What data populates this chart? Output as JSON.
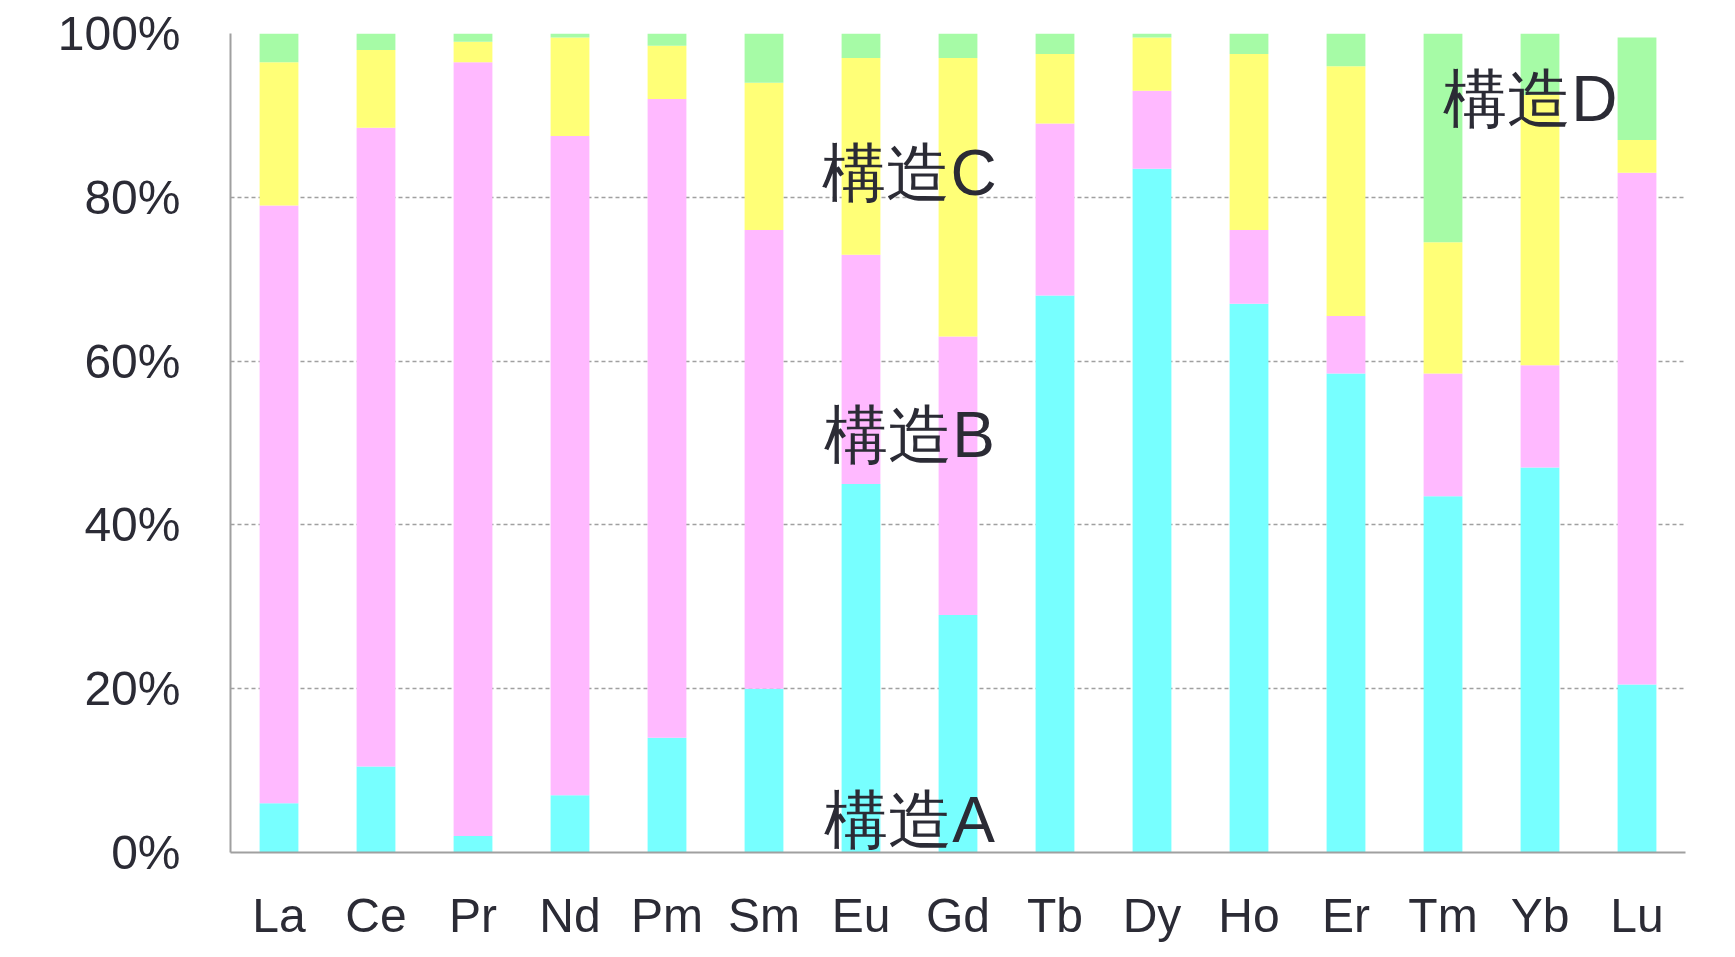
{
  "chart_data": {
    "type": "bar",
    "stacked": true,
    "categories": [
      "La",
      "Ce",
      "Pr",
      "Nd",
      "Pm",
      "Sm",
      "Eu",
      "Gd",
      "Tb",
      "Dy",
      "Ho",
      "Er",
      "Tm",
      "Yb",
      "Lu"
    ],
    "series": [
      {
        "name": "構造A",
        "color": "#77ffff",
        "values": [
          6,
          10.5,
          2,
          7,
          14,
          20,
          45,
          29,
          68,
          83.5,
          67,
          58.5,
          43.5,
          47,
          20.5
        ]
      },
      {
        "name": "構造B",
        "color": "#ffb9ff",
        "values": [
          73,
          78,
          94.5,
          80.5,
          78,
          56,
          28,
          34,
          21,
          9.5,
          9,
          7,
          15,
          12.5,
          62.5
        ]
      },
      {
        "name": "構造C",
        "color": "#ffff77",
        "values": [
          17.5,
          9.5,
          2.5,
          12,
          6.5,
          18,
          24,
          34,
          8.5,
          6.5,
          21.5,
          30.5,
          16,
          33,
          4
        ]
      },
      {
        "name": "構造D",
        "color": "#a6fba6",
        "values": [
          3.5,
          2,
          1,
          0.5,
          1.5,
          6,
          3,
          3,
          2.5,
          0.5,
          2.5,
          4,
          25.5,
          7.5,
          12.5
        ]
      }
    ],
    "ylim": [
      0,
      100
    ],
    "yticks": [
      {
        "value": 0,
        "label": "0%"
      },
      {
        "value": 20,
        "label": "20%"
      },
      {
        "value": 40,
        "label": "40%"
      },
      {
        "value": 60,
        "label": "60%"
      },
      {
        "value": 80,
        "label": "80%"
      },
      {
        "value": 100,
        "label": "100%"
      }
    ],
    "grid": "y"
  }
}
